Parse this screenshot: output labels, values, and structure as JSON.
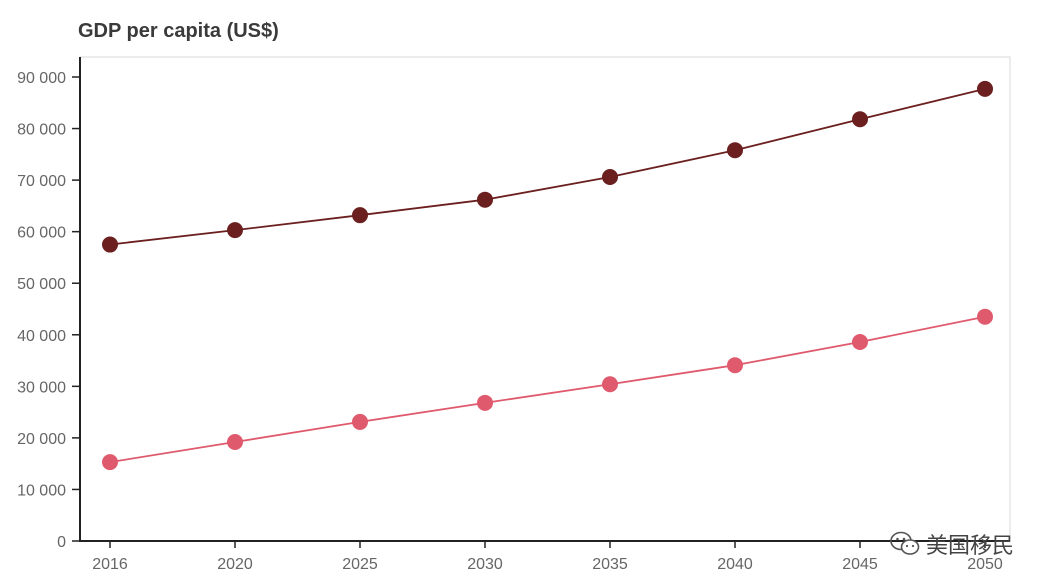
{
  "chart_data": {
    "type": "line",
    "title": "GDP per capita (US$)",
    "xlabel": "",
    "ylabel": "",
    "categories": [
      "2016",
      "2020",
      "2025",
      "2030",
      "2035",
      "2040",
      "2045",
      "2050"
    ],
    "ylim": [
      0,
      90000
    ],
    "yticks": [
      0,
      10000,
      20000,
      30000,
      40000,
      50000,
      60000,
      70000,
      80000,
      90000
    ],
    "ytick_labels": [
      "0",
      "10 000",
      "20 000",
      "30 000",
      "40 000",
      "50 000",
      "60 000",
      "70 000",
      "80 000",
      "90 000"
    ],
    "grid": false,
    "legend": "none",
    "series": [
      {
        "color": "#6b1f1f",
        "values": [
          57500,
          60300,
          63200,
          66200,
          70600,
          75800,
          81800,
          87700
        ]
      },
      {
        "color": "#e05a6e",
        "values": [
          15300,
          19200,
          23100,
          26800,
          30400,
          34100,
          38600,
          43500
        ]
      }
    ]
  },
  "watermark": {
    "icon": "wechat-icon",
    "text": "美国移民"
  }
}
